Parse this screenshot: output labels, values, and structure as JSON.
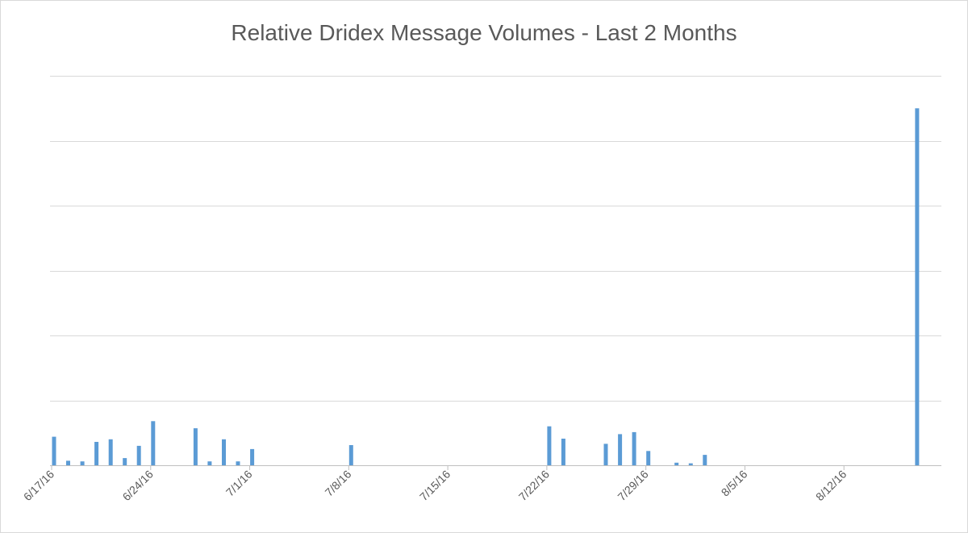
{
  "chart_data": {
    "type": "bar",
    "title": "Relative Dridex Message Volumes - Last 2 Months",
    "xlabel": "",
    "ylabel": "",
    "grid": true,
    "y_tick_labels_shown": false,
    "x_tick_labels": [
      "6/17/16",
      "6/24/16",
      "7/1/16",
      "7/8/16",
      "7/15/16",
      "7/22/16",
      "7/29/16",
      "8/5/16",
      "8/12/16"
    ],
    "x_range": [
      "6/17/16",
      "8/19/16"
    ],
    "ylim": [
      0,
      6
    ],
    "colors": {
      "bar": "#5b9bd5",
      "grid": "#d9d9d9",
      "axis": "#bfbfbf",
      "text": "#595959"
    },
    "x": [
      "6/17/16",
      "6/18/16",
      "6/19/16",
      "6/20/16",
      "6/21/16",
      "6/22/16",
      "6/23/16",
      "6/24/16",
      "6/27/16",
      "6/28/16",
      "6/29/16",
      "6/30/16",
      "7/1/16",
      "7/8/16",
      "7/22/16",
      "7/23/16",
      "7/26/16",
      "7/27/16",
      "7/28/16",
      "7/29/16",
      "7/31/16",
      "8/1/16",
      "8/2/16",
      "8/17/16"
    ],
    "values": [
      0.44,
      0.07,
      0.06,
      0.36,
      0.4,
      0.11,
      0.3,
      0.68,
      0.57,
      0.06,
      0.4,
      0.06,
      0.25,
      0.31,
      0.6,
      0.41,
      0.33,
      0.48,
      0.51,
      0.22,
      0.04,
      0.03,
      0.16,
      5.5
    ]
  }
}
